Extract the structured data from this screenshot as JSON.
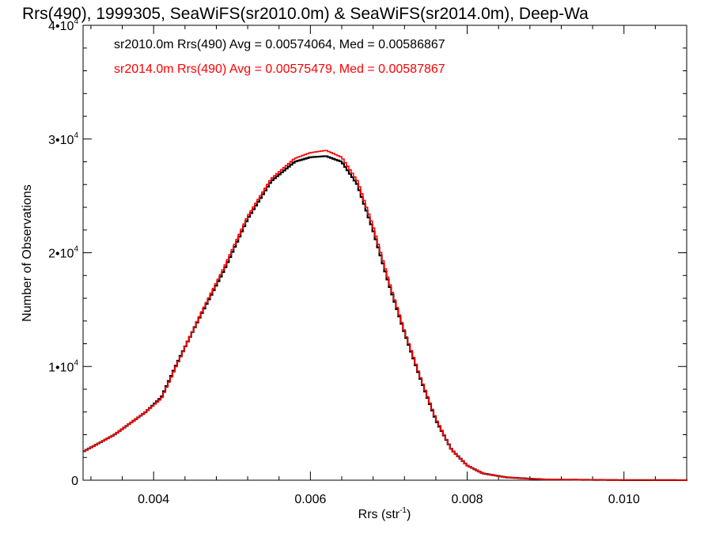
{
  "chart_data": {
    "type": "line",
    "style": "step-histogram",
    "title": "Rrs(490), 1999305, SeaWiFS(sr2010.0m) & SeaWiFS(sr2014.0m), Deep-Wa",
    "xlabel": "Rrs (str",
    "xlabel_sup": "-1",
    "xlabel_tail": ")",
    "ylabel": "Number of Observations",
    "xlim": [
      0.0031,
      0.0108
    ],
    "ylim": [
      0,
      40000
    ],
    "x_ticks": [
      {
        "value": 0.004,
        "label": "0.004"
      },
      {
        "value": 0.006,
        "label": "0.006"
      },
      {
        "value": 0.008,
        "label": "0.008"
      },
      {
        "value": 0.01,
        "label": "0.010"
      }
    ],
    "y_ticks": [
      {
        "value": 0,
        "mant": "0",
        "exp": ""
      },
      {
        "value": 10000,
        "mant": "1•10",
        "exp": "4"
      },
      {
        "value": 20000,
        "mant": "2•10",
        "exp": "4"
      },
      {
        "value": 30000,
        "mant": "3•10",
        "exp": "4"
      },
      {
        "value": 40000,
        "mant": "4•10",
        "exp": "4"
      }
    ],
    "grid": false,
    "legend_placement": "top-left",
    "x": [
      0.0031,
      0.0035,
      0.0039,
      0.0041,
      0.0043,
      0.0046,
      0.0049,
      0.0052,
      0.0055,
      0.0058,
      0.006,
      0.0062,
      0.0064,
      0.0066,
      0.0068,
      0.007,
      0.0072,
      0.0074,
      0.0076,
      0.0078,
      0.008,
      0.0082,
      0.0085,
      0.009,
      0.01,
      0.0108
    ],
    "series": [
      {
        "name": "sr2010.0m Rrs(490) Avg = 0.00574064, Med = 0.00586867",
        "color": "#000000",
        "values": [
          2500,
          4000,
          6000,
          7300,
          10300,
          14500,
          18500,
          23000,
          26300,
          28000,
          28400,
          28500,
          28000,
          26000,
          22000,
          17300,
          13000,
          9000,
          5300,
          2700,
          1300,
          600,
          250,
          60,
          10,
          5
        ]
      },
      {
        "name": "sr2014.0m Rrs(490) Avg = 0.00575479, Med = 0.00587867",
        "color": "#ff0000",
        "values": [
          2500,
          4000,
          6000,
          7200,
          10200,
          14600,
          18700,
          23200,
          26500,
          28300,
          28800,
          29000,
          28400,
          26300,
          22300,
          17500,
          13100,
          9100,
          5400,
          2700,
          1300,
          600,
          250,
          60,
          10,
          5
        ]
      }
    ]
  }
}
